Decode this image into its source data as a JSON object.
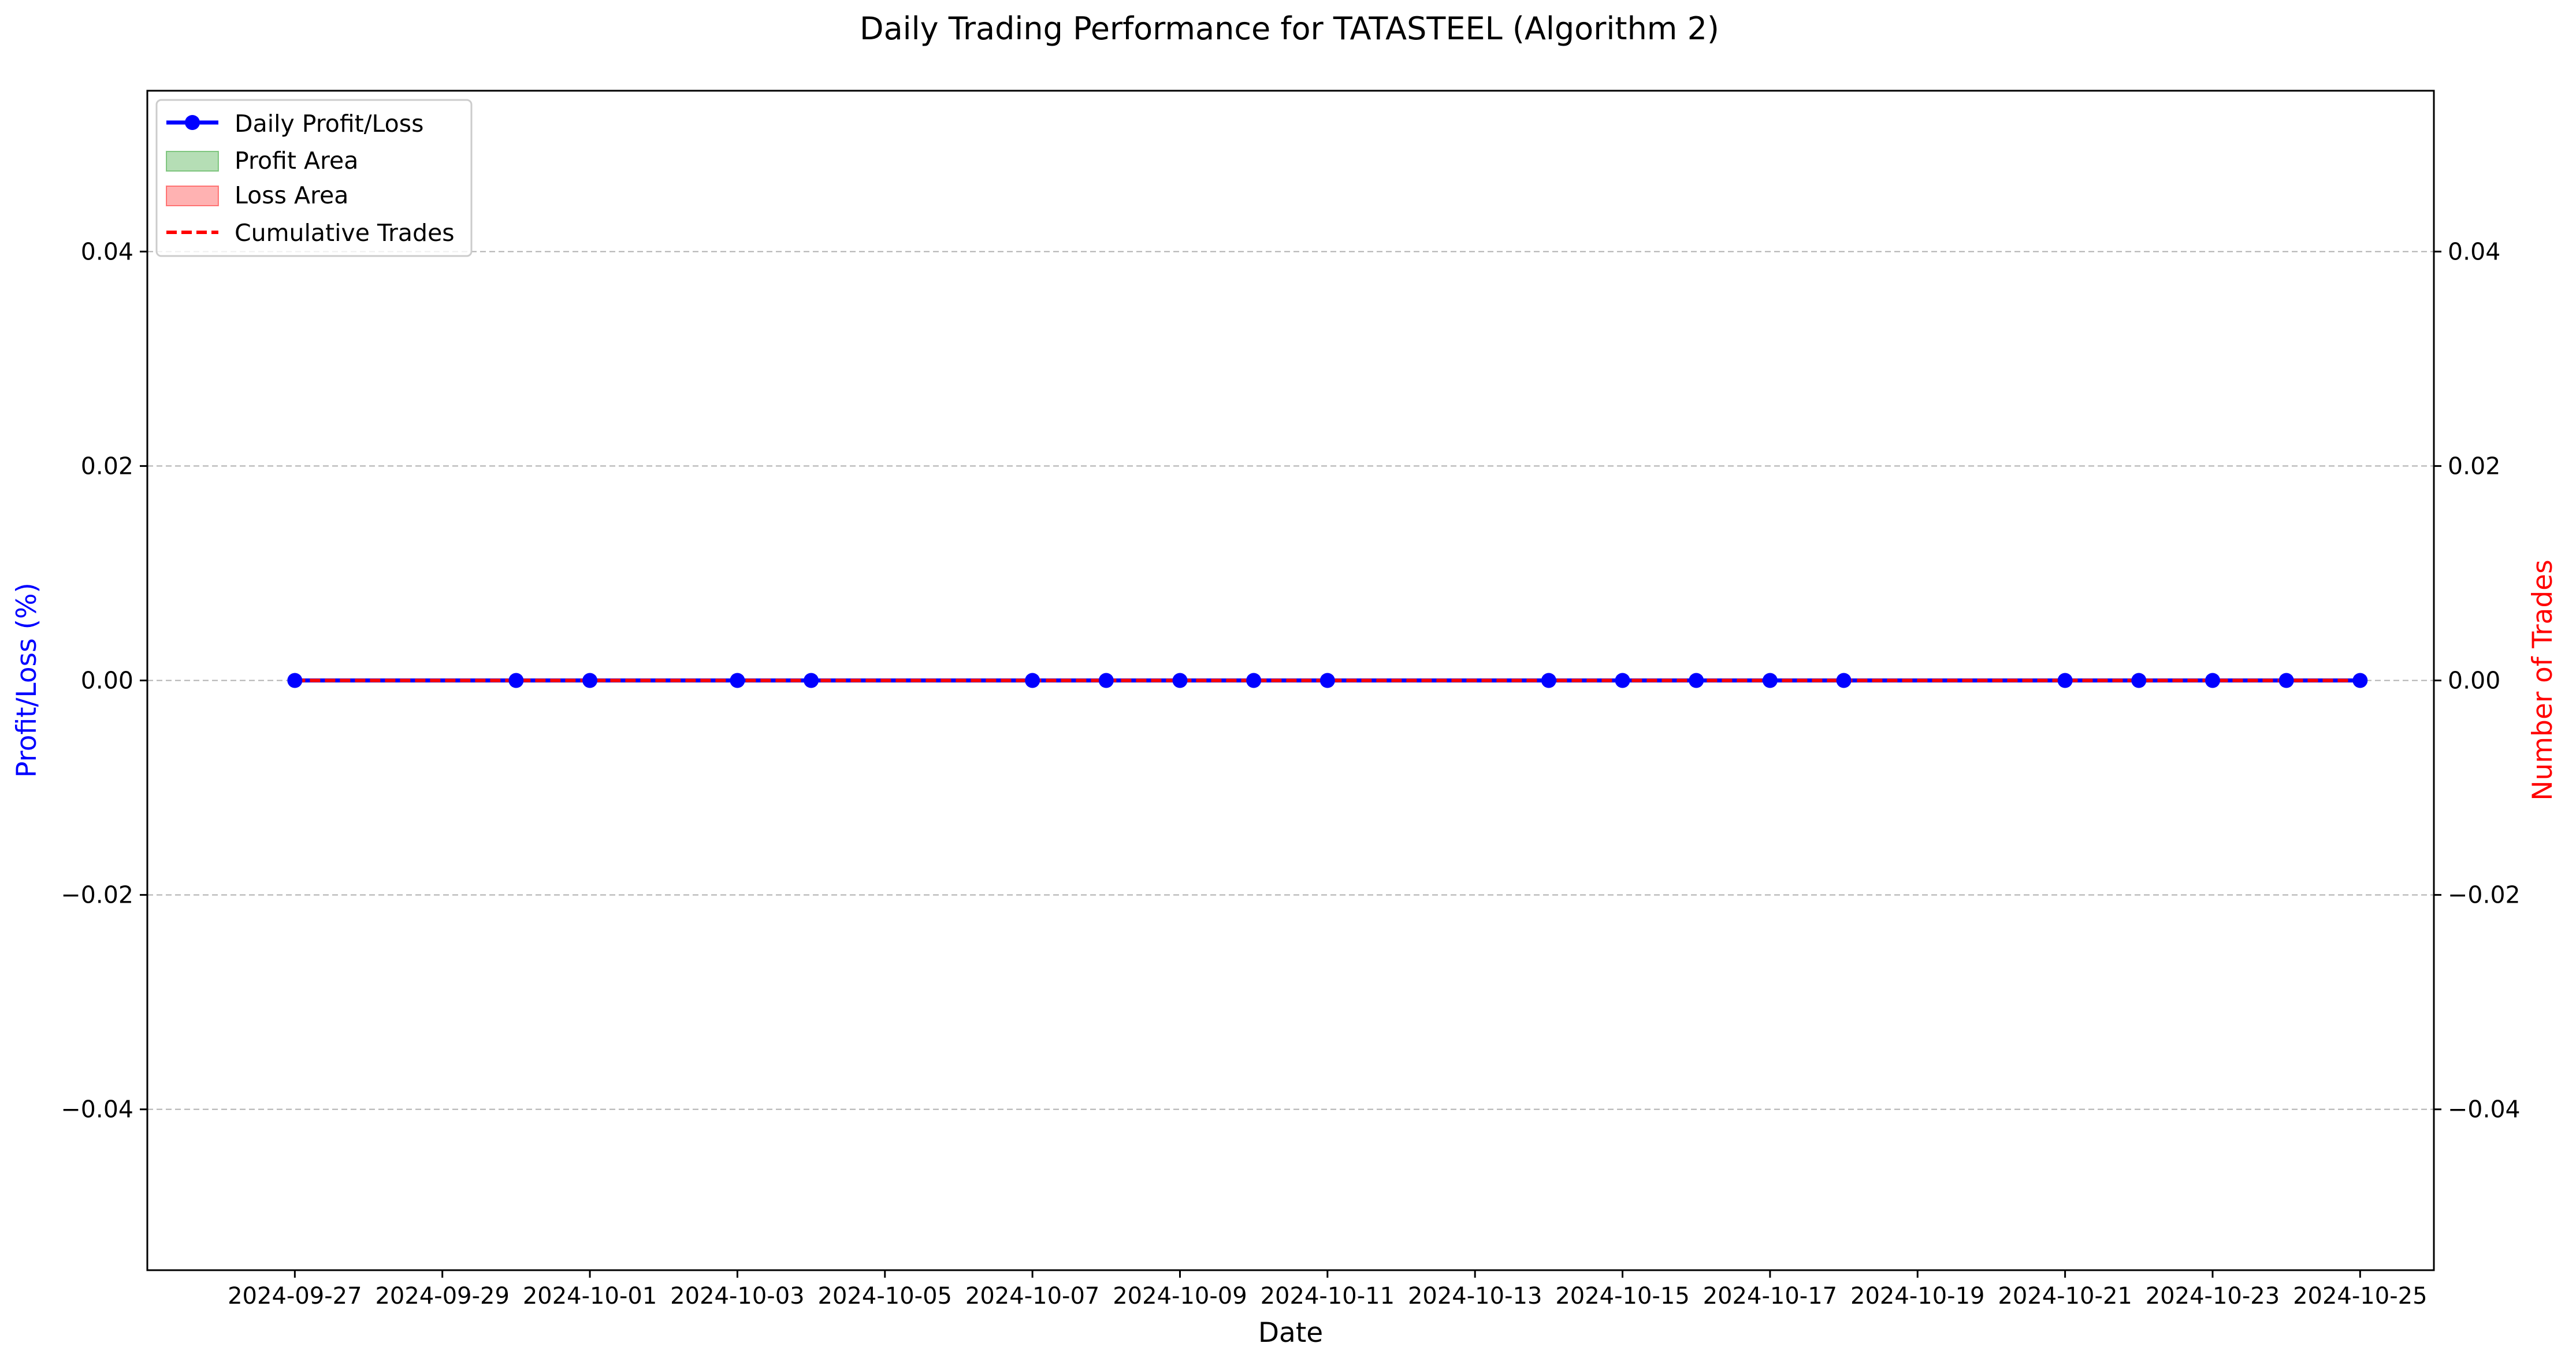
{
  "chart_data": {
    "type": "line",
    "title": "Daily Trading Performance for TATASTEEL (Algorithm 2)",
    "xlabel": "Date",
    "ylabel_left": "Profit/Loss (%)",
    "ylabel_right": "Number of Trades",
    "x": [
      "2024-09-27",
      "2024-09-30",
      "2024-10-01",
      "2024-10-03",
      "2024-10-04",
      "2024-10-07",
      "2024-10-08",
      "2024-10-09",
      "2024-10-10",
      "2024-10-11",
      "2024-10-14",
      "2024-10-15",
      "2024-10-16",
      "2024-10-17",
      "2024-10-18",
      "2024-10-21",
      "2024-10-22",
      "2024-10-23",
      "2024-10-24",
      "2024-10-25"
    ],
    "x_ticks": [
      "2024-09-27",
      "2024-09-29",
      "2024-10-01",
      "2024-10-03",
      "2024-10-05",
      "2024-10-07",
      "2024-10-09",
      "2024-10-11",
      "2024-10-13",
      "2024-10-15",
      "2024-10-17",
      "2024-10-19",
      "2024-10-21",
      "2024-10-23",
      "2024-10-25"
    ],
    "xlim": [
      "2024-09-25",
      "2024-10-26"
    ],
    "ylim_left": [
      -0.055,
      0.055
    ],
    "ylim_right": [
      -0.055,
      0.055
    ],
    "y_ticks_left": [
      "0.04",
      "0.02",
      "0.00",
      "−0.02",
      "−0.04"
    ],
    "y_tick_values_left": [
      0.04,
      0.02,
      0.0,
      -0.02,
      -0.04
    ],
    "y_ticks_right": [
      "0.04",
      "0.02",
      "0.00",
      "−0.02",
      "−0.04"
    ],
    "y_tick_values_right": [
      0.04,
      0.02,
      0.0,
      -0.02,
      -0.04
    ],
    "grid": "horizontal dashed",
    "legend_position": "top-left",
    "series": [
      {
        "name": "Daily Profit/Loss",
        "axis": "left",
        "style": "solid line with circle markers",
        "color": "#0000ff",
        "values": [
          0,
          0,
          0,
          0,
          0,
          0,
          0,
          0,
          0,
          0,
          0,
          0,
          0,
          0,
          0,
          0,
          0,
          0,
          0,
          0
        ]
      },
      {
        "name": "Cumulative Trades",
        "axis": "right",
        "style": "dashed line",
        "color": "#ff0000",
        "values": [
          0,
          0,
          0,
          0,
          0,
          0,
          0,
          0,
          0,
          0,
          0,
          0,
          0,
          0,
          0,
          0,
          0,
          0,
          0,
          0
        ]
      }
    ],
    "fill_areas": [
      {
        "name": "Profit Area",
        "color": "#2ca02c",
        "opacity": 0.35
      },
      {
        "name": "Loss Area",
        "color": "#ff0000",
        "opacity": 0.3
      }
    ],
    "legend": [
      "Daily Profit/Loss",
      "Profit Area",
      "Loss Area",
      "Cumulative Trades"
    ]
  }
}
